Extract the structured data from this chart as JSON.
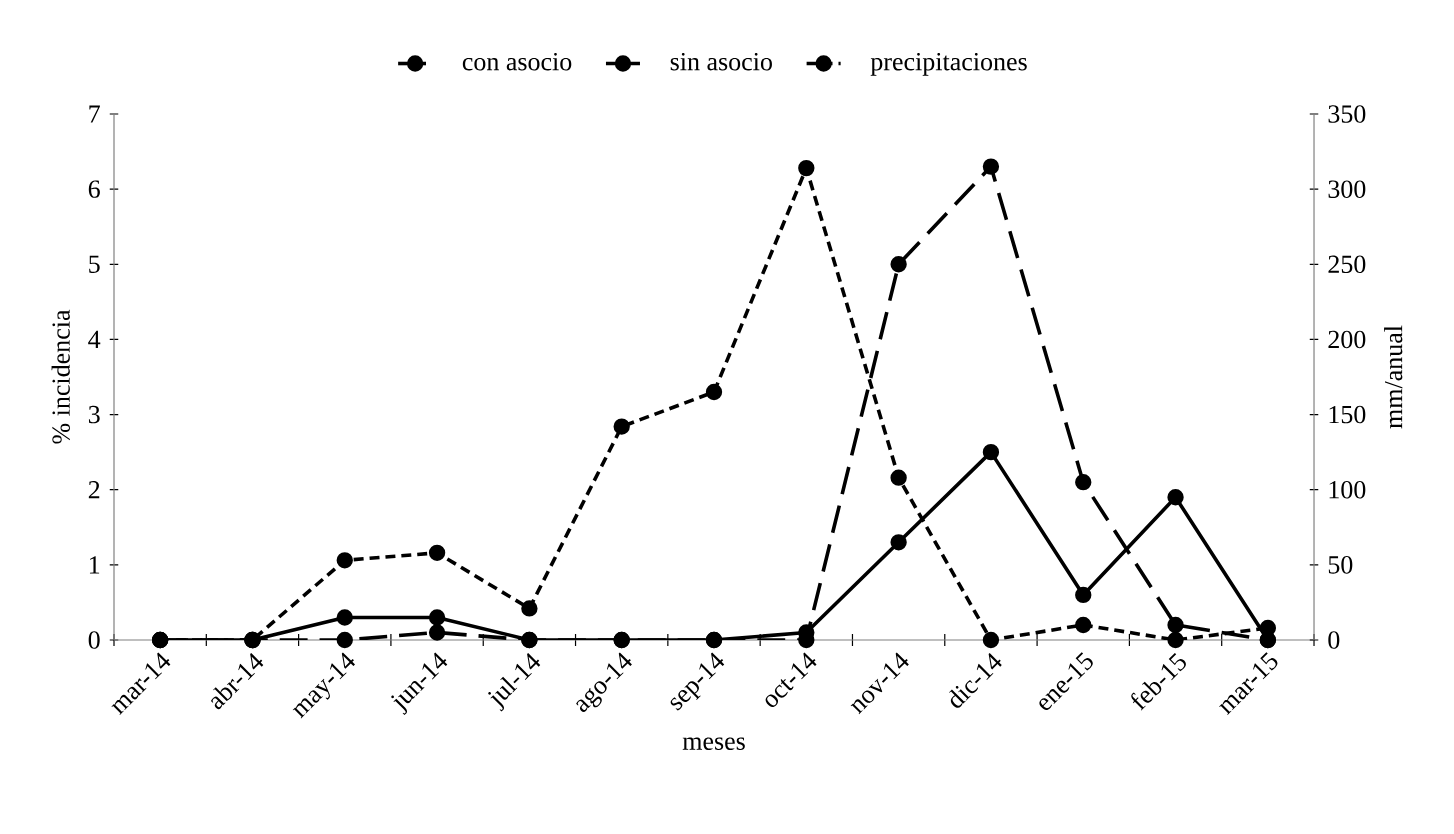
{
  "chart_data": {
    "type": "line",
    "xlabel": "meses",
    "ylabel": "% incidencia",
    "y2label": "mm/anual",
    "categories": [
      "mar-14",
      "abr-14",
      "may-14",
      "jun-14",
      "jul-14",
      "ago-14",
      "sep-14",
      "oct-14",
      "nov-14",
      "dic-14",
      "ene-15",
      "feb-15",
      "mar-15"
    ],
    "series": [
      {
        "name": "con asocio",
        "color": "#000000",
        "line_style": "dashed",
        "values": [
          0,
          0,
          0,
          0.1,
          0,
          0,
          0,
          0,
          5.0,
          6.3,
          2.1,
          0.2,
          0
        ]
      },
      {
        "name": "sin asocio",
        "color": "#000000",
        "line_style": "solid",
        "values": [
          0,
          0,
          0.3,
          0.3,
          0,
          0,
          0,
          0.1,
          1.3,
          2.5,
          0.6,
          1.9,
          0
        ]
      },
      {
        "name": "precipitaciones",
        "color": "#000000",
        "line_style": "dotted",
        "axis": "y2",
        "values": [
          0,
          0,
          53,
          58,
          21,
          142,
          165,
          314,
          108,
          0,
          10,
          0,
          8
        ]
      }
    ],
    "ylim": [
      0,
      7
    ],
    "yticks": [
      0,
      1,
      2,
      3,
      4,
      5,
      6,
      7
    ],
    "y2lim": [
      0,
      350
    ],
    "y2ticks": [
      0,
      50,
      100,
      150,
      200,
      250,
      300,
      350
    ],
    "marker": "circle",
    "legend": "top",
    "grid": false
  }
}
